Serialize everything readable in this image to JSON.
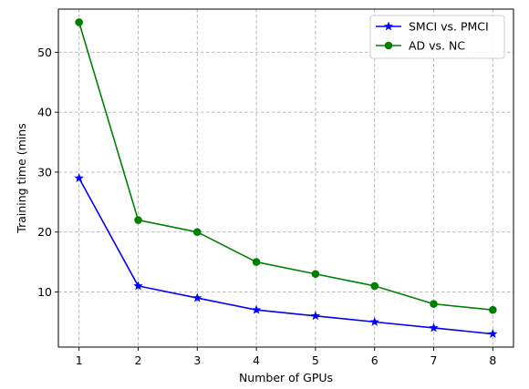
{
  "chart_data": {
    "type": "line",
    "title": "",
    "xlabel": "Number of GPUs",
    "ylabel": "Training time (mins",
    "x": [
      1,
      2,
      3,
      4,
      5,
      6,
      7,
      8
    ],
    "xlim": [
      0.65,
      8.35
    ],
    "ylim": [
      0.8,
      57.2
    ],
    "xticks": [
      1,
      2,
      3,
      4,
      5,
      6,
      7,
      8
    ],
    "yticks": [
      10,
      20,
      30,
      40,
      50
    ],
    "grid": true,
    "legend_position": "top-right",
    "series": [
      {
        "name": "SMCI vs. PMCI",
        "values": [
          29,
          11,
          9,
          7,
          6,
          5,
          4,
          3
        ],
        "color": "#0000ff",
        "marker": "star"
      },
      {
        "name": "AD vs. NC",
        "values": [
          55,
          22,
          20,
          15,
          13,
          11,
          8,
          7
        ],
        "color": "#008000",
        "marker": "circle"
      }
    ]
  }
}
